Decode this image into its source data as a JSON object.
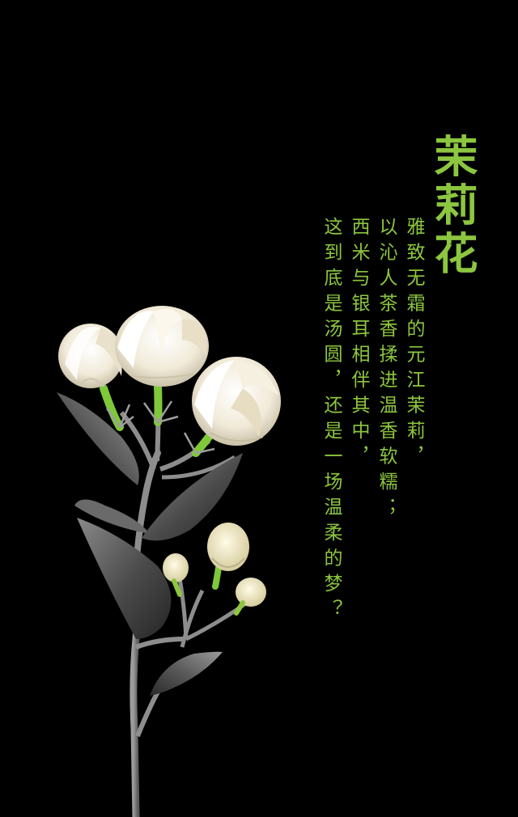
{
  "title": "茉莉花",
  "poem": {
    "lines": [
      "雅致无霜的元江茉莉，",
      "以沁人茶香揉进温香软糯；",
      "西米与银耳相伴其中，",
      "这到底是汤圆，还是一场温柔的梦？"
    ]
  },
  "colors": {
    "background": "#000000",
    "text_accent": "#8cc63f",
    "petal": "#f4efe2",
    "leaf": "#6e6e6e",
    "calyx": "#7ec83a"
  }
}
